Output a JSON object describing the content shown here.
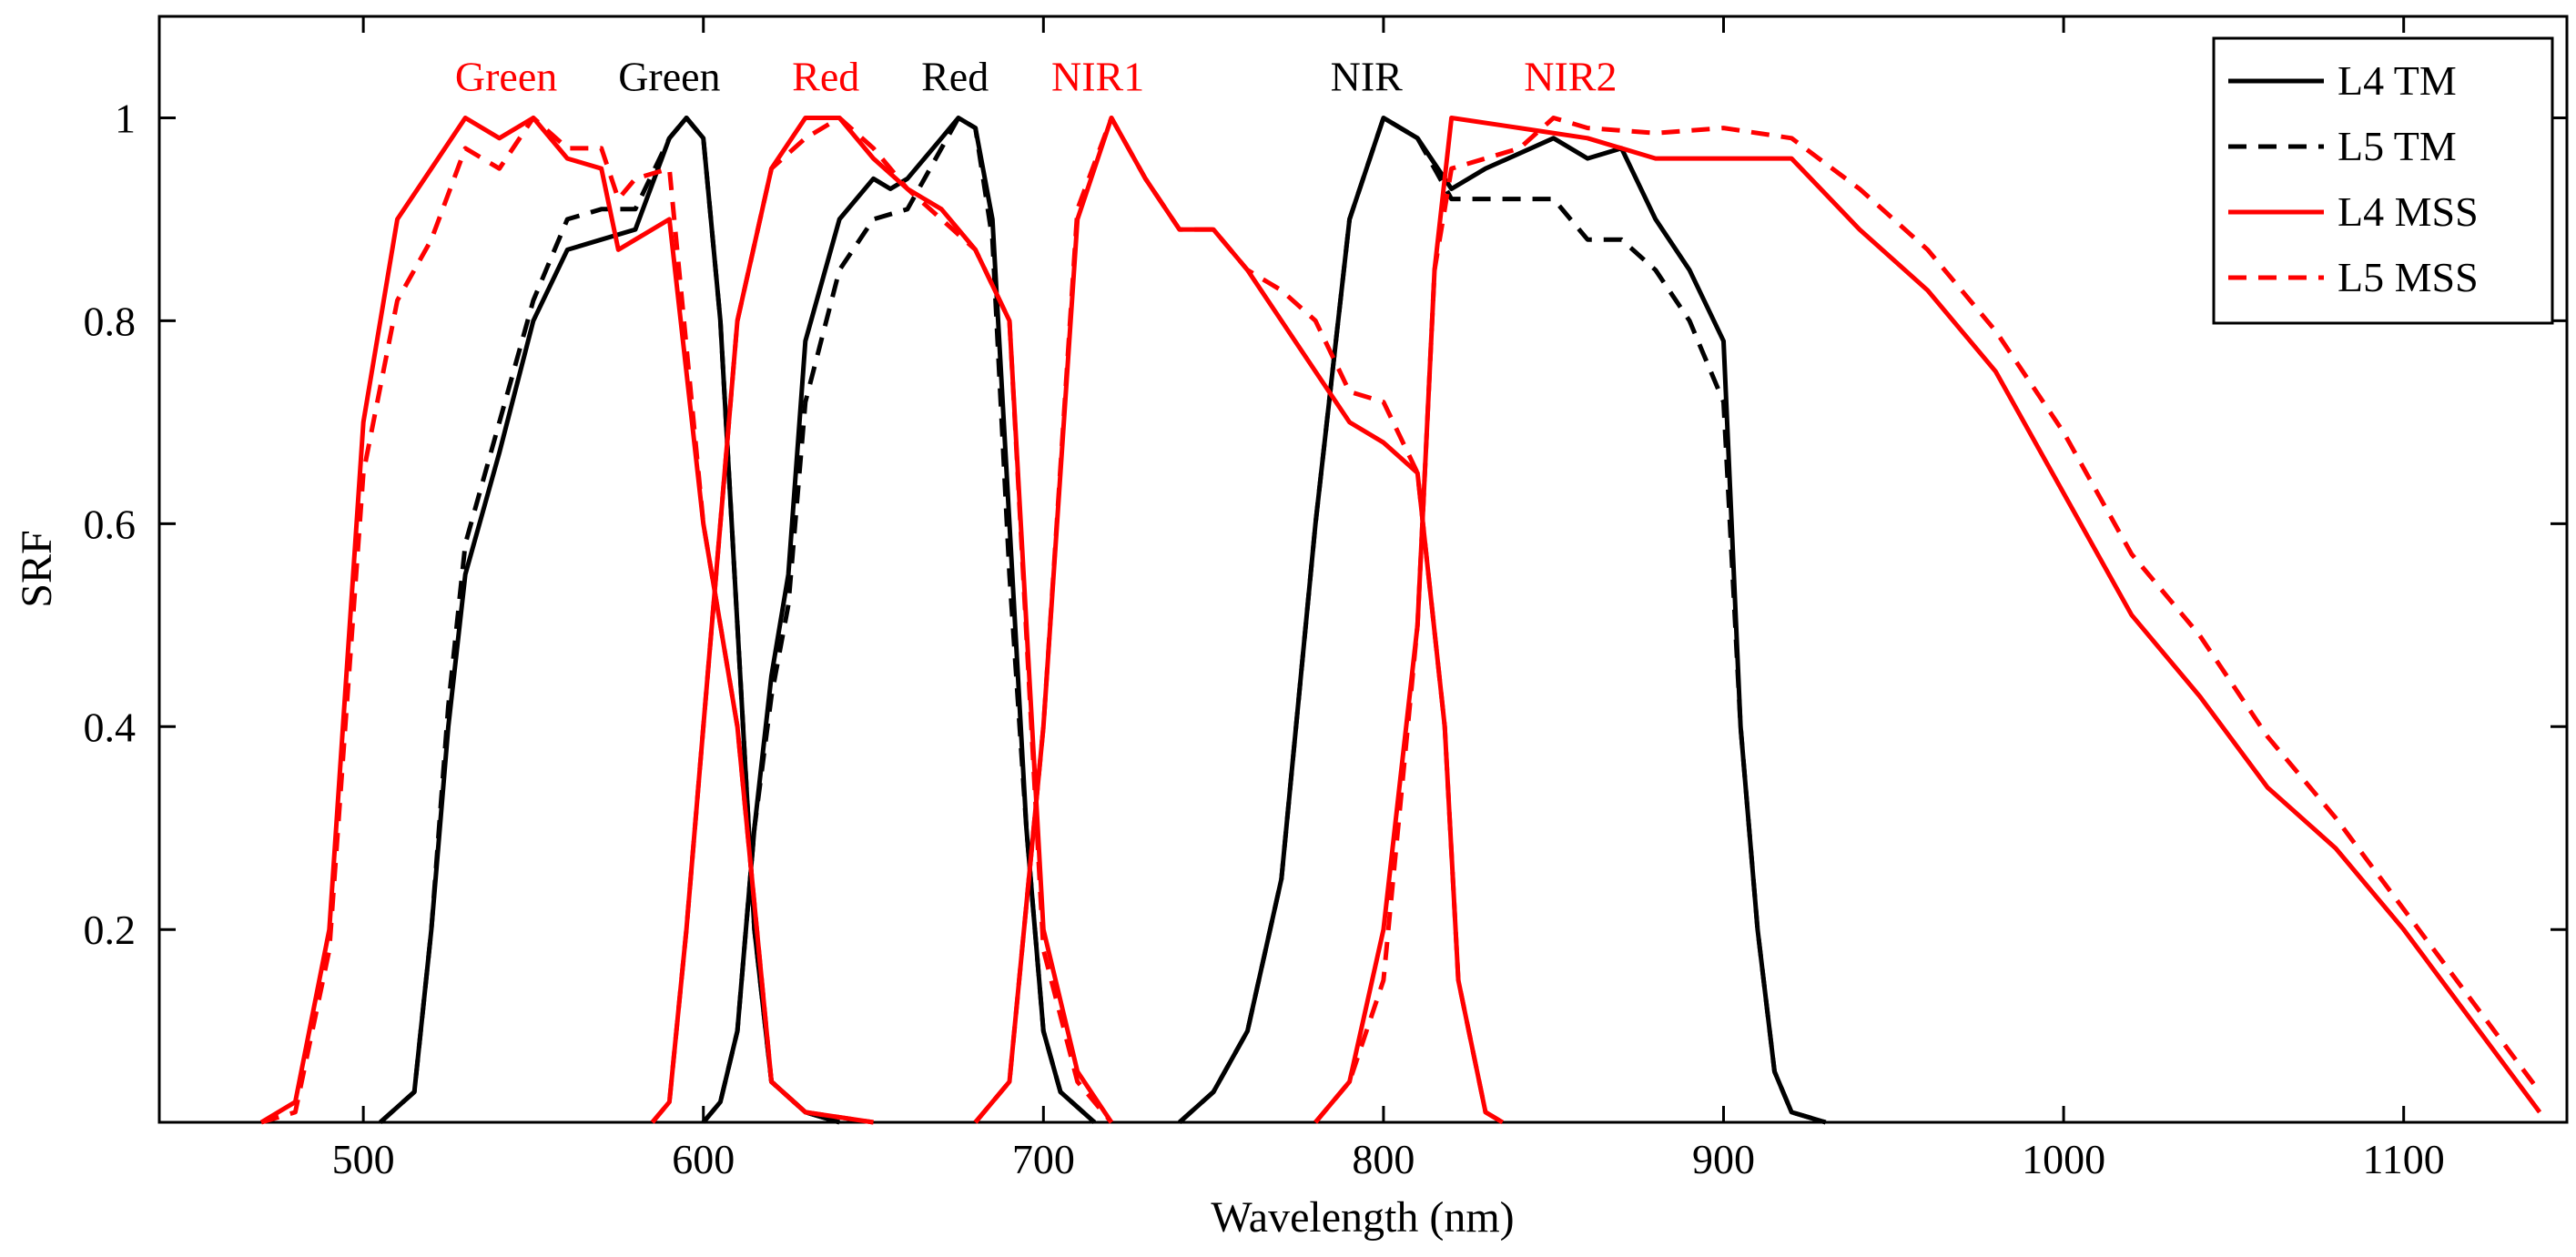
{
  "chart_data": {
    "type": "line",
    "xlabel": "Wavelength (nm)",
    "ylabel": "SRF",
    "xlim": [
      440,
      1148
    ],
    "ylim": [
      0.01,
      1.1
    ],
    "xticks": [
      500,
      600,
      700,
      800,
      900,
      1000,
      1100
    ],
    "yticks": [
      0.2,
      0.4,
      0.6,
      0.8,
      1
    ],
    "grid": false,
    "legend": {
      "position": "top-right",
      "entries": [
        {
          "label": "L4 TM",
          "color": "#000000",
          "dash": "solid"
        },
        {
          "label": "L5 TM",
          "color": "#000000",
          "dash": "dashed"
        },
        {
          "label": "L4 MSS",
          "color": "#ff0000",
          "dash": "solid"
        },
        {
          "label": "L5 MSS",
          "color": "#ff0000",
          "dash": "dashed"
        }
      ]
    },
    "band_labels": [
      {
        "text": "Green",
        "x": 542,
        "color": "#ff0000"
      },
      {
        "text": "Green",
        "x": 590,
        "color": "#000000"
      },
      {
        "text": "Red",
        "x": 636,
        "color": "#ff0000"
      },
      {
        "text": "Red",
        "x": 674,
        "color": "#000000"
      },
      {
        "text": "NIR1",
        "x": 716,
        "color": "#ff0000"
      },
      {
        "text": "NIR",
        "x": 795,
        "color": "#000000"
      },
      {
        "text": "NIR2",
        "x": 855,
        "color": "#ff0000"
      }
    ],
    "series": [
      {
        "name": "L4 TM Green",
        "group": "L4 TM",
        "color": "#000000",
        "dash": "solid",
        "points": [
          [
            505,
            0.01
          ],
          [
            515,
            0.04
          ],
          [
            520,
            0.2
          ],
          [
            525,
            0.4
          ],
          [
            530,
            0.55
          ],
          [
            540,
            0.67
          ],
          [
            550,
            0.8
          ],
          [
            560,
            0.87
          ],
          [
            570,
            0.88
          ],
          [
            580,
            0.89
          ],
          [
            590,
            0.98
          ],
          [
            595,
            1.0
          ],
          [
            600,
            0.98
          ],
          [
            605,
            0.8
          ],
          [
            610,
            0.5
          ],
          [
            615,
            0.2
          ],
          [
            620,
            0.05
          ],
          [
            630,
            0.02
          ],
          [
            640,
            0.01
          ]
        ]
      },
      {
        "name": "L5 TM Green",
        "group": "L5 TM",
        "color": "#000000",
        "dash": "dashed",
        "points": [
          [
            505,
            0.01
          ],
          [
            515,
            0.04
          ],
          [
            520,
            0.2
          ],
          [
            525,
            0.42
          ],
          [
            530,
            0.58
          ],
          [
            540,
            0.7
          ],
          [
            550,
            0.82
          ],
          [
            560,
            0.9
          ],
          [
            570,
            0.91
          ],
          [
            580,
            0.91
          ],
          [
            590,
            0.98
          ],
          [
            595,
            1.0
          ],
          [
            600,
            0.98
          ],
          [
            605,
            0.8
          ],
          [
            610,
            0.5
          ],
          [
            615,
            0.2
          ],
          [
            620,
            0.05
          ],
          [
            630,
            0.02
          ],
          [
            640,
            0.01
          ]
        ]
      },
      {
        "name": "L4 TM Red",
        "group": "L4 TM",
        "color": "#000000",
        "dash": "solid",
        "points": [
          [
            600,
            0.01
          ],
          [
            605,
            0.03
          ],
          [
            610,
            0.1
          ],
          [
            615,
            0.3
          ],
          [
            620,
            0.45
          ],
          [
            625,
            0.55
          ],
          [
            630,
            0.78
          ],
          [
            640,
            0.9
          ],
          [
            650,
            0.94
          ],
          [
            655,
            0.93
          ],
          [
            660,
            0.94
          ],
          [
            670,
            0.98
          ],
          [
            675,
            1.0
          ],
          [
            680,
            0.99
          ],
          [
            685,
            0.9
          ],
          [
            690,
            0.6
          ],
          [
            695,
            0.3
          ],
          [
            700,
            0.1
          ],
          [
            705,
            0.04
          ],
          [
            715,
            0.01
          ]
        ]
      },
      {
        "name": "L5 TM Red",
        "group": "L5 TM",
        "color": "#000000",
        "dash": "dashed",
        "points": [
          [
            600,
            0.01
          ],
          [
            605,
            0.03
          ],
          [
            610,
            0.1
          ],
          [
            615,
            0.3
          ],
          [
            620,
            0.43
          ],
          [
            625,
            0.52
          ],
          [
            630,
            0.72
          ],
          [
            640,
            0.85
          ],
          [
            650,
            0.9
          ],
          [
            660,
            0.91
          ],
          [
            670,
            0.97
          ],
          [
            675,
            1.0
          ],
          [
            680,
            0.99
          ],
          [
            685,
            0.88
          ],
          [
            690,
            0.55
          ],
          [
            695,
            0.3
          ],
          [
            700,
            0.1
          ],
          [
            705,
            0.04
          ],
          [
            715,
            0.01
          ]
        ]
      },
      {
        "name": "L4 TM NIR",
        "group": "L4 TM",
        "color": "#000000",
        "dash": "solid",
        "points": [
          [
            740,
            0.01
          ],
          [
            750,
            0.04
          ],
          [
            760,
            0.1
          ],
          [
            770,
            0.25
          ],
          [
            780,
            0.6
          ],
          [
            790,
            0.9
          ],
          [
            800,
            1.0
          ],
          [
            810,
            0.98
          ],
          [
            820,
            0.93
          ],
          [
            830,
            0.95
          ],
          [
            850,
            0.98
          ],
          [
            860,
            0.96
          ],
          [
            870,
            0.97
          ],
          [
            880,
            0.9
          ],
          [
            890,
            0.85
          ],
          [
            900,
            0.78
          ],
          [
            905,
            0.4
          ],
          [
            910,
            0.2
          ],
          [
            915,
            0.06
          ],
          [
            920,
            0.02
          ],
          [
            930,
            0.01
          ]
        ]
      },
      {
        "name": "L5 TM NIR",
        "group": "L5 TM",
        "color": "#000000",
        "dash": "dashed",
        "points": [
          [
            740,
            0.01
          ],
          [
            750,
            0.04
          ],
          [
            760,
            0.1
          ],
          [
            770,
            0.25
          ],
          [
            780,
            0.6
          ],
          [
            790,
            0.9
          ],
          [
            800,
            1.0
          ],
          [
            810,
            0.98
          ],
          [
            820,
            0.92
          ],
          [
            830,
            0.92
          ],
          [
            850,
            0.92
          ],
          [
            860,
            0.88
          ],
          [
            870,
            0.88
          ],
          [
            880,
            0.85
          ],
          [
            890,
            0.8
          ],
          [
            900,
            0.72
          ],
          [
            905,
            0.4
          ],
          [
            910,
            0.2
          ],
          [
            915,
            0.06
          ],
          [
            920,
            0.02
          ],
          [
            930,
            0.01
          ]
        ]
      },
      {
        "name": "L4 MSS Green",
        "group": "L4 MSS",
        "color": "#ff0000",
        "dash": "solid",
        "points": [
          [
            470,
            0.01
          ],
          [
            480,
            0.03
          ],
          [
            490,
            0.2
          ],
          [
            500,
            0.7
          ],
          [
            510,
            0.9
          ],
          [
            520,
            0.95
          ],
          [
            530,
            1.0
          ],
          [
            540,
            0.98
          ],
          [
            550,
            1.0
          ],
          [
            560,
            0.96
          ],
          [
            570,
            0.95
          ],
          [
            575,
            0.87
          ],
          [
            580,
            0.88
          ],
          [
            590,
            0.9
          ],
          [
            600,
            0.6
          ],
          [
            610,
            0.4
          ],
          [
            620,
            0.05
          ],
          [
            630,
            0.02
          ],
          [
            650,
            0.01
          ]
        ]
      },
      {
        "name": "L5 MSS Green",
        "group": "L5 MSS",
        "color": "#ff0000",
        "dash": "dashed",
        "points": [
          [
            470,
            0.01
          ],
          [
            480,
            0.02
          ],
          [
            490,
            0.18
          ],
          [
            500,
            0.65
          ],
          [
            510,
            0.82
          ],
          [
            520,
            0.88
          ],
          [
            530,
            0.97
          ],
          [
            540,
            0.95
          ],
          [
            550,
            1.0
          ],
          [
            560,
            0.97
          ],
          [
            570,
            0.97
          ],
          [
            575,
            0.92
          ],
          [
            580,
            0.94
          ],
          [
            590,
            0.95
          ],
          [
            600,
            0.6
          ],
          [
            610,
            0.4
          ],
          [
            620,
            0.05
          ],
          [
            630,
            0.02
          ],
          [
            650,
            0.01
          ]
        ]
      },
      {
        "name": "L4 MSS Red",
        "group": "L4 MSS",
        "color": "#ff0000",
        "dash": "solid",
        "points": [
          [
            585,
            0.01
          ],
          [
            590,
            0.03
          ],
          [
            595,
            0.2
          ],
          [
            600,
            0.4
          ],
          [
            605,
            0.6
          ],
          [
            610,
            0.8
          ],
          [
            620,
            0.95
          ],
          [
            630,
            1.0
          ],
          [
            640,
            1.0
          ],
          [
            650,
            0.96
          ],
          [
            660,
            0.93
          ],
          [
            670,
            0.91
          ],
          [
            680,
            0.87
          ],
          [
            690,
            0.8
          ],
          [
            700,
            0.2
          ],
          [
            710,
            0.06
          ],
          [
            720,
            0.01
          ]
        ]
      },
      {
        "name": "L5 MSS Red",
        "group": "L5 MSS",
        "color": "#ff0000",
        "dash": "dashed",
        "points": [
          [
            585,
            0.01
          ],
          [
            590,
            0.03
          ],
          [
            595,
            0.2
          ],
          [
            600,
            0.4
          ],
          [
            605,
            0.6
          ],
          [
            610,
            0.8
          ],
          [
            620,
            0.95
          ],
          [
            630,
            0.98
          ],
          [
            640,
            1.0
          ],
          [
            650,
            0.97
          ],
          [
            660,
            0.93
          ],
          [
            670,
            0.9
          ],
          [
            680,
            0.87
          ],
          [
            690,
            0.8
          ],
          [
            700,
            0.18
          ],
          [
            710,
            0.05
          ],
          [
            720,
            0.01
          ]
        ]
      },
      {
        "name": "L4 MSS NIR1",
        "group": "L4 MSS",
        "color": "#ff0000",
        "dash": "solid",
        "points": [
          [
            680,
            0.01
          ],
          [
            690,
            0.05
          ],
          [
            700,
            0.4
          ],
          [
            710,
            0.9
          ],
          [
            720,
            1.0
          ],
          [
            730,
            0.94
          ],
          [
            740,
            0.89
          ],
          [
            750,
            0.89
          ],
          [
            760,
            0.85
          ],
          [
            770,
            0.8
          ],
          [
            790,
            0.7
          ],
          [
            800,
            0.68
          ],
          [
            810,
            0.65
          ],
          [
            818,
            0.4
          ],
          [
            822,
            0.15
          ],
          [
            830,
            0.02
          ],
          [
            835,
            0.01
          ]
        ]
      },
      {
        "name": "L5 MSS NIR1",
        "group": "L5 MSS",
        "color": "#ff0000",
        "dash": "dashed",
        "points": [
          [
            680,
            0.01
          ],
          [
            690,
            0.05
          ],
          [
            700,
            0.4
          ],
          [
            710,
            0.91
          ],
          [
            720,
            1.0
          ],
          [
            730,
            0.94
          ],
          [
            740,
            0.89
          ],
          [
            750,
            0.89
          ],
          [
            760,
            0.85
          ],
          [
            770,
            0.83
          ],
          [
            780,
            0.8
          ],
          [
            790,
            0.73
          ],
          [
            800,
            0.72
          ],
          [
            810,
            0.65
          ],
          [
            818,
            0.4
          ],
          [
            822,
            0.15
          ],
          [
            830,
            0.02
          ],
          [
            835,
            0.01
          ]
        ]
      },
      {
        "name": "L4 MSS NIR2",
        "group": "L4 MSS",
        "color": "#ff0000",
        "dash": "solid",
        "points": [
          [
            780,
            0.01
          ],
          [
            790,
            0.05
          ],
          [
            800,
            0.2
          ],
          [
            810,
            0.5
          ],
          [
            815,
            0.85
          ],
          [
            820,
            1.0
          ],
          [
            840,
            0.99
          ],
          [
            860,
            0.98
          ],
          [
            880,
            0.96
          ],
          [
            900,
            0.96
          ],
          [
            920,
            0.96
          ],
          [
            940,
            0.89
          ],
          [
            960,
            0.83
          ],
          [
            980,
            0.75
          ],
          [
            1000,
            0.63
          ],
          [
            1020,
            0.51
          ],
          [
            1040,
            0.43
          ],
          [
            1060,
            0.34
          ],
          [
            1080,
            0.28
          ],
          [
            1100,
            0.2
          ],
          [
            1120,
            0.11
          ],
          [
            1140,
            0.02
          ]
        ]
      },
      {
        "name": "L5 MSS NIR2",
        "group": "L5 MSS",
        "color": "#ff0000",
        "dash": "dashed",
        "points": [
          [
            780,
            0.01
          ],
          [
            790,
            0.05
          ],
          [
            800,
            0.15
          ],
          [
            810,
            0.5
          ],
          [
            815,
            0.85
          ],
          [
            820,
            0.95
          ],
          [
            840,
            0.97
          ],
          [
            850,
            1.0
          ],
          [
            860,
            0.99
          ],
          [
            880,
            0.985
          ],
          [
            900,
            0.99
          ],
          [
            920,
            0.98
          ],
          [
            940,
            0.93
          ],
          [
            960,
            0.87
          ],
          [
            980,
            0.79
          ],
          [
            1000,
            0.69
          ],
          [
            1020,
            0.57
          ],
          [
            1040,
            0.49
          ],
          [
            1060,
            0.39
          ],
          [
            1080,
            0.31
          ],
          [
            1100,
            0.22
          ],
          [
            1120,
            0.13
          ],
          [
            1140,
            0.04
          ]
        ]
      }
    ]
  }
}
